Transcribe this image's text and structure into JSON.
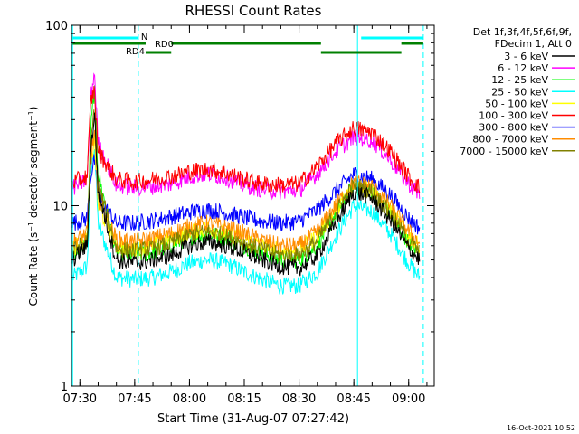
{
  "chart_data": {
    "type": "line",
    "title": "RHESSI Count Rates",
    "xlabel": "Start Time (31-Aug-07 07:27:42)",
    "ylabel": "Count Rate (s⁻¹ detector segment⁻¹)",
    "ylabel_main": "Count Rate (s",
    "ylabel_sup1": "−1",
    "ylabel_mid": " detector segment",
    "ylabel_sup2": "−1",
    "ylabel_end": ")",
    "y_scale": "log",
    "ylim": [
      1,
      100
    ],
    "xlim": [
      "07:27:42",
      "09:07:00"
    ],
    "x_ticks": [
      "07:30",
      "07:45",
      "08:00",
      "08:15",
      "08:30",
      "08:45",
      "09:00"
    ],
    "y_ticks": [
      "1",
      "10",
      "100"
    ],
    "legend_header": [
      "Det 1f,3f,4f,5f,6f,9f,",
      "FDecim 1, Att 0"
    ],
    "legend_placement": "right",
    "timestamp": "16-Oct-2021 10:52",
    "grid": false,
    "series": [
      {
        "name": "3 - 6 keV",
        "color": "#000000",
        "x": [
          "07:28",
          "07:32",
          "07:33",
          "07:34",
          "07:35",
          "07:40",
          "07:45",
          "07:50",
          "07:55",
          "08:00",
          "08:05",
          "08:10",
          "08:15",
          "08:20",
          "08:25",
          "08:30",
          "08:35",
          "08:40",
          "08:45",
          "08:50",
          "08:55",
          "09:00",
          "09:03"
        ],
        "values": [
          5.0,
          6.0,
          20,
          33,
          12,
          5.0,
          4.8,
          5.0,
          5.3,
          6.0,
          6.3,
          6.0,
          5.5,
          5.0,
          4.6,
          4.5,
          5.3,
          8.0,
          12.0,
          11.0,
          8.3,
          5.8,
          5.0
        ]
      },
      {
        "name": "6 - 12 keV",
        "color": "#ff00ff",
        "x": [
          "07:28",
          "07:32",
          "07:33",
          "07:34",
          "07:35",
          "07:40",
          "07:45",
          "07:50",
          "07:55",
          "08:00",
          "08:05",
          "08:10",
          "08:15",
          "08:20",
          "08:25",
          "08:30",
          "08:35",
          "08:40",
          "08:45",
          "08:50",
          "08:55",
          "09:00",
          "09:03"
        ],
        "values": [
          12.5,
          14,
          40,
          55,
          22,
          13,
          12.5,
          12.8,
          13.2,
          14.5,
          15,
          14.3,
          13,
          12.3,
          12,
          12.2,
          15,
          20,
          24,
          23,
          18,
          13.2,
          11.5
        ]
      },
      {
        "name": "12 - 25 keV",
        "color": "#00ff00",
        "x": [
          "07:28",
          "07:32",
          "07:33",
          "07:34",
          "07:35",
          "07:40",
          "07:45",
          "07:50",
          "07:55",
          "08:00",
          "08:05",
          "08:10",
          "08:15",
          "08:20",
          "08:25",
          "08:30",
          "08:35",
          "08:40",
          "08:45",
          "08:50",
          "08:55",
          "09:00",
          "09:03"
        ],
        "values": [
          5.4,
          6.3,
          27,
          44,
          15,
          5.5,
          5.3,
          5.5,
          6.0,
          6.7,
          7.0,
          6.6,
          6.0,
          5.4,
          5.0,
          5.0,
          6.0,
          9.0,
          13.0,
          12.0,
          9.0,
          6.3,
          5.4
        ]
      },
      {
        "name": "25 - 50 keV",
        "color": "#00ffff",
        "x": [
          "07:28",
          "07:32",
          "07:33",
          "07:34",
          "07:35",
          "07:40",
          "07:45",
          "07:50",
          "07:55",
          "08:00",
          "08:05",
          "08:10",
          "08:15",
          "08:20",
          "08:25",
          "08:30",
          "08:35",
          "08:40",
          "08:45",
          "08:50",
          "08:55",
          "09:00",
          "09:03"
        ],
        "values": [
          4.0,
          4.6,
          15,
          22,
          8,
          4.0,
          3.9,
          4.0,
          4.3,
          4.8,
          5.0,
          4.8,
          4.3,
          3.9,
          3.6,
          3.6,
          4.3,
          6.8,
          10.0,
          9.3,
          7.0,
          4.8,
          4.0
        ]
      },
      {
        "name": "50 - 100 keV",
        "color": "#ffff00",
        "x": [
          "07:28",
          "07:32",
          "07:33",
          "07:34",
          "07:35",
          "07:40",
          "07:45",
          "07:50",
          "07:55",
          "08:00",
          "08:05",
          "08:10",
          "08:15",
          "08:20",
          "08:25",
          "08:30",
          "08:35",
          "08:40",
          "08:45",
          "08:50",
          "08:55",
          "09:00",
          "09:03"
        ],
        "values": [
          5.8,
          6.5,
          17,
          24,
          10,
          6.0,
          5.8,
          6.1,
          6.5,
          7.2,
          7.5,
          7.1,
          6.5,
          6.0,
          5.6,
          5.6,
          6.8,
          9.5,
          13.0,
          12.3,
          9.5,
          6.8,
          5.9
        ]
      },
      {
        "name": "100 - 300 keV",
        "color": "#ff0000",
        "x": [
          "07:28",
          "07:32",
          "07:33",
          "07:34",
          "07:35",
          "07:40",
          "07:45",
          "07:50",
          "07:55",
          "08:00",
          "08:05",
          "08:10",
          "08:15",
          "08:20",
          "08:25",
          "08:30",
          "08:35",
          "08:40",
          "08:45",
          "08:50",
          "08:55",
          "09:00",
          "09:03"
        ],
        "values": [
          13.5,
          14.5,
          38,
          44,
          20,
          14,
          13.5,
          14,
          14.5,
          15.5,
          16,
          15.2,
          14,
          13.2,
          13,
          13.2,
          16.5,
          22,
          27,
          25.5,
          20,
          14.5,
          12.5
        ]
      },
      {
        "name": "300 - 800 keV",
        "color": "#0000ff",
        "x": [
          "07:28",
          "07:32",
          "07:33",
          "07:34",
          "07:35",
          "07:40",
          "07:45",
          "07:50",
          "07:55",
          "08:00",
          "08:05",
          "08:10",
          "08:15",
          "08:20",
          "08:25",
          "08:30",
          "08:35",
          "08:40",
          "08:45",
          "08:50",
          "08:55",
          "09:00",
          "09:03"
        ],
        "values": [
          8.0,
          8.5,
          15,
          18,
          11,
          8.0,
          8.0,
          8.3,
          8.7,
          9.2,
          9.5,
          9.1,
          8.6,
          8.2,
          8.0,
          8.2,
          9.5,
          12,
          15,
          14,
          11.5,
          8.5,
          7.5
        ]
      },
      {
        "name": "800 - 7000 keV",
        "color": "#ff8c00",
        "x": [
          "07:28",
          "07:32",
          "07:33",
          "07:34",
          "07:35",
          "07:40",
          "07:45",
          "07:50",
          "07:55",
          "08:00",
          "08:05",
          "08:10",
          "08:15",
          "08:20",
          "08:25",
          "08:30",
          "08:35",
          "08:40",
          "08:45",
          "08:50",
          "08:55",
          "09:00",
          "09:03"
        ],
        "values": [
          6.3,
          7.0,
          18,
          26,
          11,
          6.5,
          6.3,
          6.6,
          7.0,
          7.7,
          8.0,
          7.6,
          7.0,
          6.4,
          6.0,
          6.0,
          7.2,
          10.0,
          13.5,
          12.8,
          10.0,
          7.2,
          6.2
        ]
      },
      {
        "name": "7000 - 15000 keV",
        "color": "#808000",
        "x": [
          "07:28",
          "07:32",
          "07:33",
          "07:34",
          "07:35",
          "07:40",
          "07:45",
          "07:50",
          "07:55",
          "08:00",
          "08:05",
          "08:10",
          "08:15",
          "08:20",
          "08:25",
          "08:30",
          "08:35",
          "08:40",
          "08:45",
          "08:50",
          "08:55",
          "09:00",
          "09:03"
        ],
        "values": [
          5.6,
          6.4,
          22,
          35,
          13,
          5.8,
          5.6,
          5.8,
          6.2,
          6.9,
          7.2,
          6.8,
          6.2,
          5.7,
          5.3,
          5.3,
          6.4,
          9.2,
          13.0,
          12.0,
          9.0,
          6.4,
          5.5
        ]
      }
    ],
    "flags": [
      {
        "label": "N",
        "color": "#00ffff",
        "level": 1,
        "segments": [
          [
            "07:28",
            "07:46"
          ],
          [
            "08:47",
            "09:04"
          ]
        ]
      },
      {
        "label": "RD0",
        "color": "#008000",
        "level": 2,
        "segments": [
          [
            "07:28",
            "07:48"
          ],
          [
            "07:55",
            "08:36"
          ],
          [
            "08:58",
            "09:04"
          ]
        ]
      },
      {
        "label": "RD4",
        "color": "#008000",
        "level": 3,
        "segments": [
          [
            "07:48",
            "07:55"
          ],
          [
            "08:36",
            "08:58"
          ]
        ]
      }
    ],
    "vlines": [
      {
        "x": "07:28",
        "style": "solid",
        "color": "#00ffff"
      },
      {
        "x": "07:46",
        "style": "dashed",
        "color": "#00ffff"
      },
      {
        "x": "08:46",
        "style": "solid",
        "color": "#00ffff"
      },
      {
        "x": "09:04",
        "style": "dashed",
        "color": "#00ffff"
      }
    ]
  }
}
